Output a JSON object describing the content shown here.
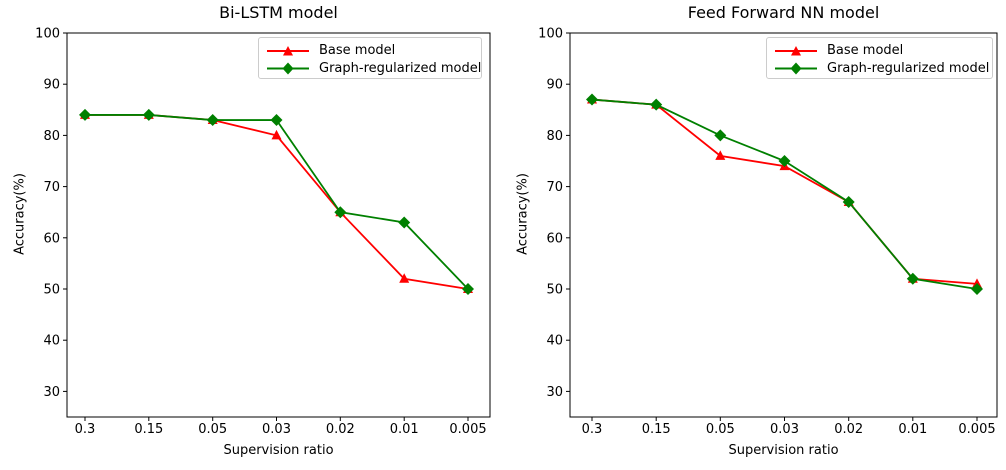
{
  "figure": {
    "background": "#ffffff",
    "accent_red": "#ff0000",
    "accent_green": "#008000"
  },
  "chart_data": [
    {
      "type": "line",
      "title": "Bi-LSTM model",
      "xlabel": "Supervision ratio",
      "ylabel": "Accuracy(%)",
      "categories": [
        "0.3",
        "0.15",
        "0.05",
        "0.03",
        "0.02",
        "0.01",
        "0.005"
      ],
      "yticks": [
        100,
        90,
        80,
        70,
        60,
        50,
        40,
        30
      ],
      "ylim": [
        25,
        100
      ],
      "grid": false,
      "legend_position": "upper right",
      "series": [
        {
          "name": "Base model",
          "color": "#ff0000",
          "marker": "triangle",
          "values": [
            84,
            84,
            83,
            80,
            65,
            52,
            50
          ]
        },
        {
          "name": "Graph-regularized model",
          "color": "#008000",
          "marker": "diamond",
          "values": [
            84,
            84,
            83,
            83,
            65,
            63,
            50
          ]
        }
      ]
    },
    {
      "type": "line",
      "title": "Feed Forward NN model",
      "xlabel": "Supervision ratio",
      "ylabel": "Accuracy(%)",
      "categories": [
        "0.3",
        "0.15",
        "0.05",
        "0.03",
        "0.02",
        "0.01",
        "0.005"
      ],
      "yticks": [
        100,
        90,
        80,
        70,
        60,
        50,
        40,
        30
      ],
      "ylim": [
        25,
        100
      ],
      "grid": false,
      "legend_position": "upper right",
      "series": [
        {
          "name": "Base model",
          "color": "#ff0000",
          "marker": "triangle",
          "values": [
            87,
            86,
            76,
            74,
            67,
            52,
            51
          ]
        },
        {
          "name": "Graph-regularized model",
          "color": "#008000",
          "marker": "diamond",
          "values": [
            87,
            86,
            80,
            75,
            67,
            52,
            50
          ]
        }
      ]
    }
  ]
}
